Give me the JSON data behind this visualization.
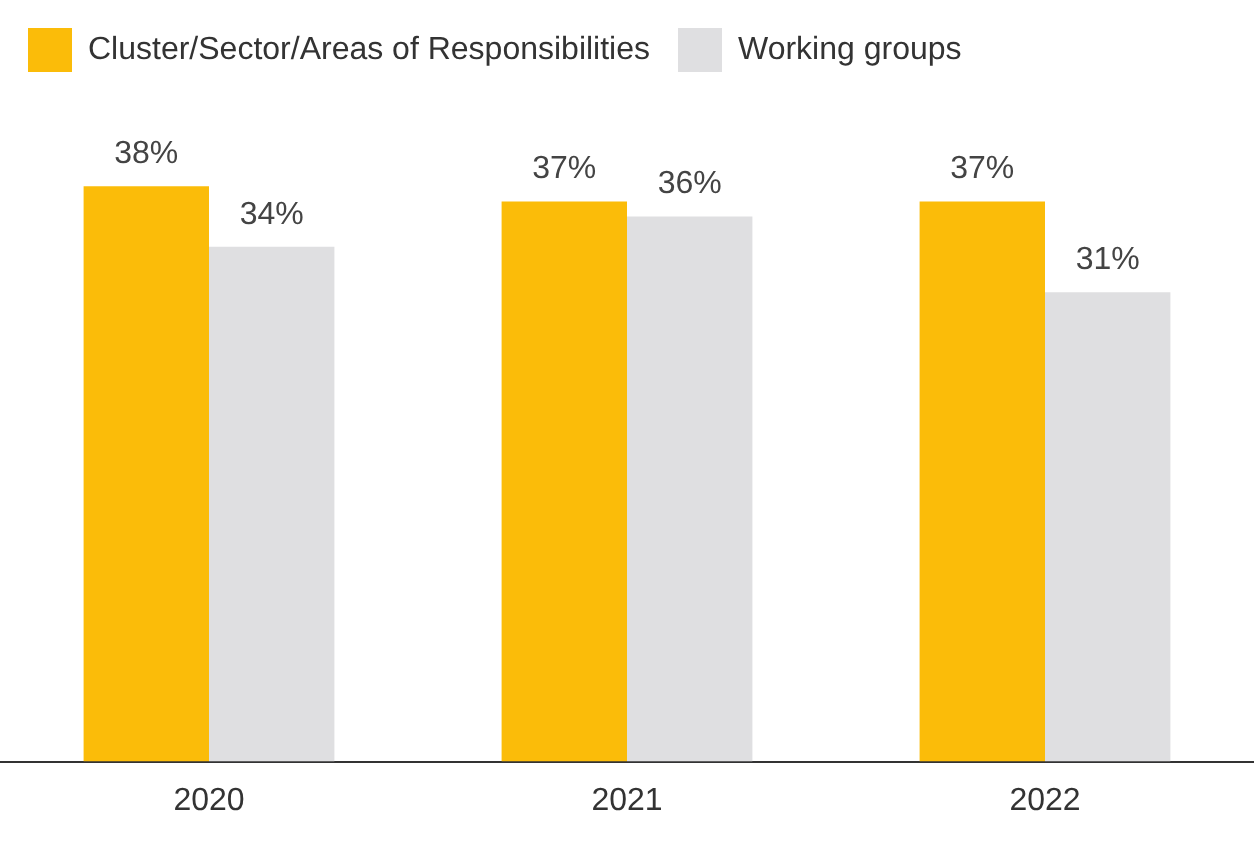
{
  "chart_data": {
    "type": "bar",
    "categories": [
      "2020",
      "2021",
      "2022"
    ],
    "series": [
      {
        "name": "Cluster/Sector/Areas of Responsibilities",
        "color": "#fbbc09",
        "values": [
          38,
          37,
          37
        ],
        "value_labels": [
          "38%",
          "37%",
          "37%"
        ]
      },
      {
        "name": "Working groups",
        "color": "#dfdfe1",
        "values": [
          34,
          36,
          31
        ],
        "value_labels": [
          "34%",
          "36%",
          "31%"
        ]
      }
    ],
    "tick_labels": "x",
    "grid": false,
    "legend": "top left"
  }
}
